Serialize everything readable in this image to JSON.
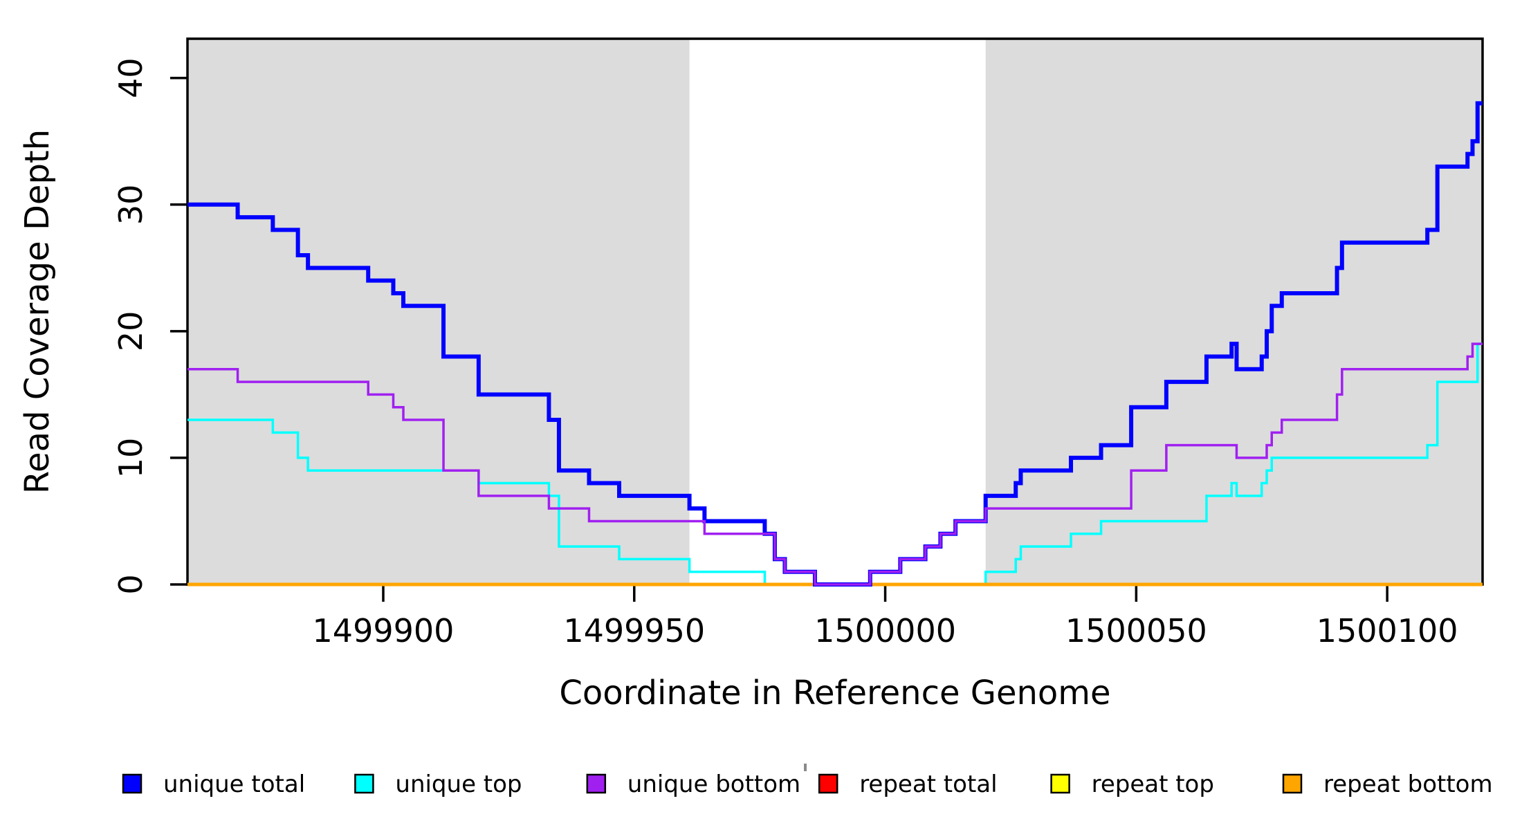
{
  "figure": {
    "kind": "read-coverage-step-plot",
    "background": "#ffffff"
  },
  "chart_data": {
    "type": "line",
    "step_mode": true,
    "title": "",
    "xlabel": "Coordinate in Reference Genome",
    "ylabel": "Read Coverage Depth",
    "xlim": [
      1499861,
      1500119
    ],
    "ylim": [
      0,
      43.1
    ],
    "x_ticks": [
      1499900,
      1499950,
      1500000,
      1500050,
      1500100
    ],
    "y_ticks": [
      0,
      10,
      20,
      30,
      40
    ],
    "grid": false,
    "legend_position": "bottom",
    "shade_color": "#DCDCDC",
    "shaded_regions": [
      [
        1499861,
        1499961
      ],
      [
        1500020,
        1500119
      ]
    ],
    "series": [
      {
        "name": "repeat total",
        "color": "#FF0000",
        "width": 3,
        "steps": [
          [
            1499861,
            0
          ]
        ]
      },
      {
        "name": "repeat top",
        "color": "#FFFF00",
        "width": 3,
        "steps": [
          [
            1499861,
            0
          ]
        ]
      },
      {
        "name": "unique top",
        "color": "#00FFFF",
        "width": 3.5,
        "steps": [
          [
            1499861,
            13
          ],
          [
            1499878,
            12
          ],
          [
            1499883,
            10
          ],
          [
            1499885,
            9
          ],
          [
            1499919,
            8
          ],
          [
            1499933,
            7
          ],
          [
            1499935,
            3
          ],
          [
            1499947,
            2
          ],
          [
            1499961,
            1
          ],
          [
            1499976,
            0
          ],
          [
            1500020,
            1
          ],
          [
            1500026,
            2
          ],
          [
            1500027,
            3
          ],
          [
            1500037,
            4
          ],
          [
            1500043,
            5
          ],
          [
            1500064,
            7
          ],
          [
            1500069,
            8
          ],
          [
            1500070,
            7
          ],
          [
            1500075,
            8
          ],
          [
            1500076,
            9
          ],
          [
            1500077,
            10
          ],
          [
            1500108,
            11
          ],
          [
            1500110,
            16
          ],
          [
            1500118,
            19
          ]
        ]
      },
      {
        "name": "repeat bottom",
        "color": "#FFA500",
        "width": 5,
        "steps": [
          [
            1499861,
            0
          ]
        ]
      },
      {
        "name": "unique total",
        "color": "#0000FF",
        "width": 6,
        "steps": [
          [
            1499861,
            30
          ],
          [
            1499871,
            29
          ],
          [
            1499878,
            28
          ],
          [
            1499883,
            26
          ],
          [
            1499885,
            25
          ],
          [
            1499897,
            24
          ],
          [
            1499902,
            23
          ],
          [
            1499904,
            22
          ],
          [
            1499912,
            18
          ],
          [
            1499919,
            15
          ],
          [
            1499933,
            13
          ],
          [
            1499935,
            9
          ],
          [
            1499941,
            8
          ],
          [
            1499947,
            7
          ],
          [
            1499961,
            6
          ],
          [
            1499964,
            5
          ],
          [
            1499976,
            4
          ],
          [
            1499978,
            2
          ],
          [
            1499980,
            1
          ],
          [
            1499986,
            0
          ],
          [
            1499997,
            1
          ],
          [
            1500003,
            2
          ],
          [
            1500008,
            3
          ],
          [
            1500011,
            4
          ],
          [
            1500014,
            5
          ],
          [
            1500020,
            7
          ],
          [
            1500026,
            8
          ],
          [
            1500027,
            9
          ],
          [
            1500037,
            10
          ],
          [
            1500043,
            11
          ],
          [
            1500049,
            14
          ],
          [
            1500056,
            16
          ],
          [
            1500064,
            18
          ],
          [
            1500069,
            19
          ],
          [
            1500070,
            17
          ],
          [
            1500075,
            18
          ],
          [
            1500076,
            20
          ],
          [
            1500077,
            22
          ],
          [
            1500079,
            23
          ],
          [
            1500090,
            25
          ],
          [
            1500091,
            27
          ],
          [
            1500108,
            28
          ],
          [
            1500110,
            33
          ],
          [
            1500116,
            34
          ],
          [
            1500117,
            35
          ],
          [
            1500118,
            38
          ]
        ]
      },
      {
        "name": "unique bottom",
        "color": "#A020F0",
        "width": 3.5,
        "steps": [
          [
            1499861,
            17
          ],
          [
            1499871,
            16
          ],
          [
            1499897,
            15
          ],
          [
            1499902,
            14
          ],
          [
            1499904,
            13
          ],
          [
            1499912,
            9
          ],
          [
            1499919,
            7
          ],
          [
            1499933,
            6
          ],
          [
            1499941,
            5
          ],
          [
            1499964,
            4
          ],
          [
            1499978,
            2
          ],
          [
            1499980,
            1
          ],
          [
            1499986,
            0
          ],
          [
            1499997,
            1
          ],
          [
            1500003,
            2
          ],
          [
            1500008,
            3
          ],
          [
            1500011,
            4
          ],
          [
            1500014,
            5
          ],
          [
            1500020,
            6
          ],
          [
            1500049,
            9
          ],
          [
            1500056,
            11
          ],
          [
            1500070,
            10
          ],
          [
            1500076,
            11
          ],
          [
            1500077,
            12
          ],
          [
            1500079,
            13
          ],
          [
            1500090,
            15
          ],
          [
            1500091,
            17
          ],
          [
            1500116,
            18
          ],
          [
            1500117,
            19
          ]
        ]
      }
    ],
    "legend": {
      "items": [
        {
          "label": "unique total",
          "color": "#0000FF"
        },
        {
          "label": "unique top",
          "color": "#00FFFF"
        },
        {
          "label": "unique bottom",
          "color": "#A020F0"
        },
        {
          "label": "repeat total",
          "color": "#FF0000"
        },
        {
          "label": "repeat top",
          "color": "#FFFF00"
        },
        {
          "label": "repeat bottom",
          "color": "#FFA500"
        }
      ]
    }
  }
}
